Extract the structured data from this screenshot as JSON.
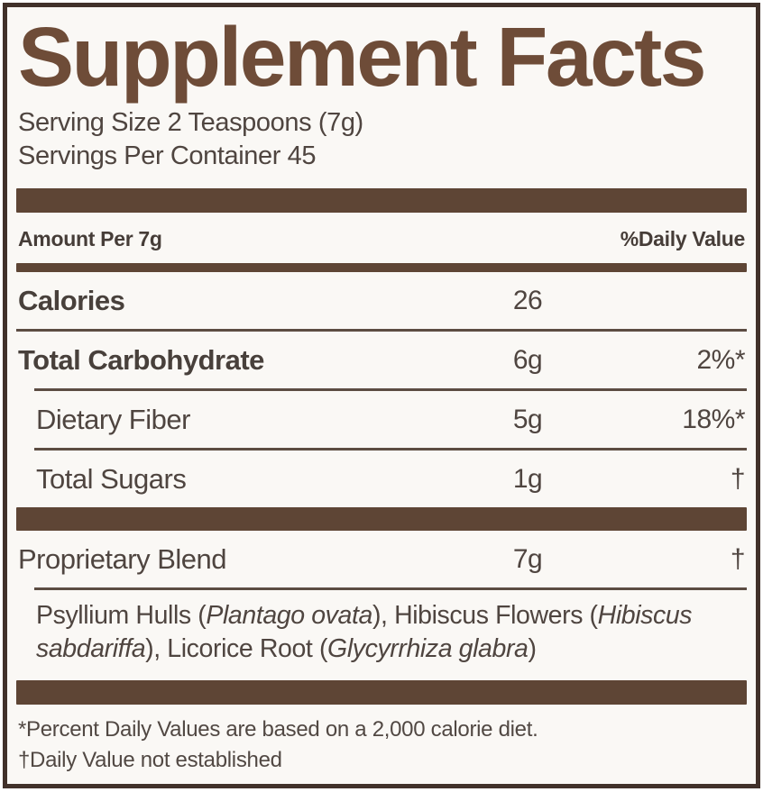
{
  "title": "Supplement Facts",
  "serving": {
    "size": "Serving Size 2 Teaspoons (7g)",
    "per_container": "Servings Per Container 45"
  },
  "table_header": {
    "amount_per": "Amount Per 7g",
    "daily_value": "%Daily Value"
  },
  "rows": [
    {
      "name": "Calories",
      "amount": "26",
      "dv": ""
    },
    {
      "name": "Total Carbohydrate",
      "amount": "6g",
      "dv": "2%*"
    },
    {
      "name": "Dietary Fiber",
      "amount": "5g",
      "dv": "18%*"
    },
    {
      "name": "Total Sugars",
      "amount": "1g",
      "dv": "†"
    },
    {
      "name": "Proprietary Blend",
      "amount": "7g",
      "dv": "†"
    }
  ],
  "blend_ingredients": [
    {
      "t": "Psyllium Hulls ("
    },
    {
      "t": "Plantago ovata",
      "i": true
    },
    {
      "t": "), Hibiscus Flowers ("
    },
    {
      "t": "Hibiscus sabdariffa",
      "i": true
    },
    {
      "t": "), Licorice Root ("
    },
    {
      "t": "Glycyrrhiza glabra",
      "i": true
    },
    {
      "t": ")"
    }
  ],
  "footnotes": [
    "*Percent Daily Values are based on a 2,000 calorie diet.",
    "†Daily Value not established"
  ],
  "colors": {
    "accent_bar": "#5e4535",
    "title_brown": "#6e4c38",
    "text": "#4f4540",
    "border": "#41312a",
    "background": "#faf8f5"
  }
}
